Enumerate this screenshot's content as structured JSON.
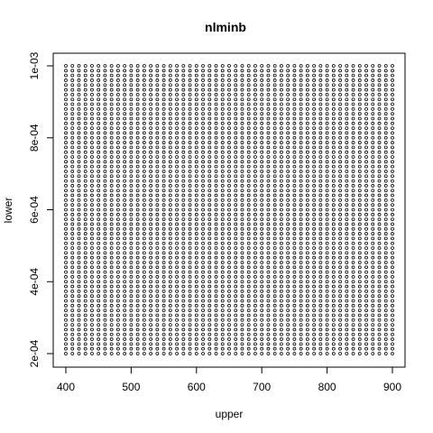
{
  "chart_data": {
    "type": "scatter",
    "title": "nlminb",
    "xlabel": "upper",
    "ylabel": "lower",
    "xlim": [
      400,
      900
    ],
    "ylim": [
      0.0002,
      0.001
    ],
    "x_ticks": [
      400,
      500,
      600,
      700,
      800,
      900
    ],
    "x_tick_labels": [
      "400",
      "500",
      "600",
      "700",
      "800",
      "900"
    ],
    "y_ticks": [
      0.0002,
      0.0004,
      0.0006,
      0.0008,
      0.001
    ],
    "y_tick_labels": [
      "2e-04",
      "4e-04",
      "6e-04",
      "8e-04",
      "1e-03"
    ],
    "grid": false,
    "marker": "open-circle",
    "point_grid": {
      "x": {
        "start": 400,
        "end": 900,
        "count": 51
      },
      "y": {
        "start": 0.0002,
        "end": 0.001,
        "count": 61
      }
    }
  }
}
